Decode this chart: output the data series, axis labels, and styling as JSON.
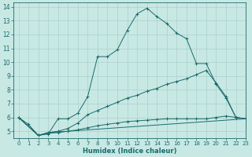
{
  "xlabel": "Humidex (Indice chaleur)",
  "xlim": [
    -0.5,
    23
  ],
  "ylim": [
    4.5,
    14.3
  ],
  "xticks": [
    0,
    1,
    2,
    3,
    4,
    5,
    6,
    7,
    8,
    9,
    10,
    11,
    12,
    13,
    14,
    15,
    16,
    17,
    18,
    19,
    20,
    21,
    22,
    23
  ],
  "yticks": [
    5,
    6,
    7,
    8,
    9,
    10,
    11,
    12,
    13,
    14
  ],
  "bg_color": "#c8e8e4",
  "grid_color": "#aad0cc",
  "line_color": "#1a6b6b",
  "lines": [
    {
      "x": [
        0,
        1,
        2,
        3,
        4,
        5,
        6,
        7,
        8,
        9,
        10,
        11,
        12,
        13,
        14,
        15,
        16,
        17,
        18,
        19,
        20,
        21,
        22,
        23
      ],
      "y": [
        6.0,
        5.5,
        4.7,
        4.8,
        5.9,
        5.9,
        6.3,
        7.5,
        10.4,
        10.4,
        10.9,
        12.3,
        13.5,
        13.9,
        13.3,
        12.8,
        12.1,
        11.7,
        9.9,
        9.9,
        8.4,
        7.4,
        6.0,
        5.9
      ],
      "marker": "+"
    },
    {
      "x": [
        0,
        2,
        3,
        4,
        5,
        6,
        7,
        8,
        9,
        10,
        11,
        12,
        13,
        14,
        15,
        16,
        17,
        18,
        19,
        20,
        21,
        22,
        23
      ],
      "y": [
        6.0,
        4.7,
        4.9,
        5.0,
        5.2,
        5.6,
        6.2,
        6.5,
        6.8,
        7.1,
        7.4,
        7.6,
        7.9,
        8.1,
        8.4,
        8.6,
        8.8,
        9.1,
        9.4,
        8.5,
        7.5,
        6.0,
        5.9
      ],
      "marker": "+"
    },
    {
      "x": [
        0,
        2,
        3,
        4,
        5,
        6,
        7,
        8,
        9,
        10,
        11,
        12,
        13,
        14,
        15,
        16,
        17,
        18,
        19,
        20,
        21,
        22,
        23
      ],
      "y": [
        6.0,
        4.7,
        4.85,
        4.9,
        5.0,
        5.1,
        5.25,
        5.4,
        5.5,
        5.6,
        5.7,
        5.75,
        5.8,
        5.85,
        5.9,
        5.9,
        5.9,
        5.9,
        5.9,
        6.0,
        6.1,
        6.0,
        5.9
      ],
      "marker": "+"
    },
    {
      "x": [
        0,
        2,
        3,
        23
      ],
      "y": [
        6.0,
        4.7,
        4.9,
        5.9
      ],
      "marker": null
    }
  ]
}
